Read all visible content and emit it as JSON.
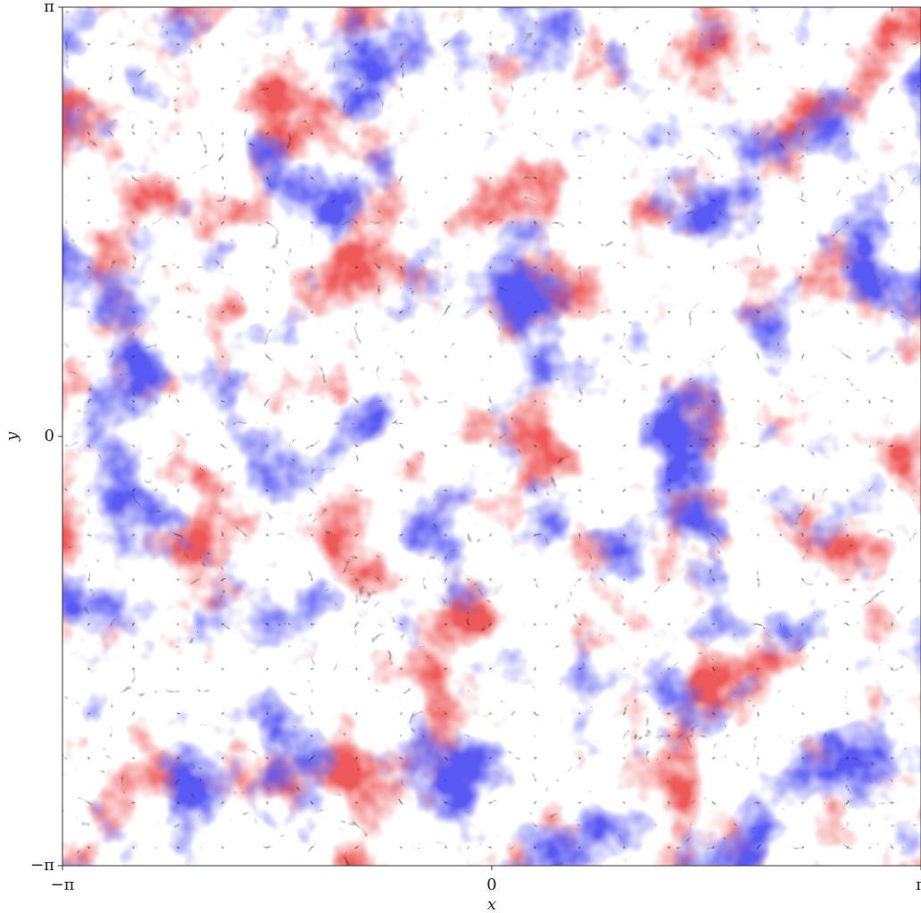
{
  "chart_data": {
    "type": "image",
    "x_label": "x",
    "y_label": "y",
    "xlim": [
      -3.141592653589793,
      3.141592653589793
    ],
    "ylim": [
      -3.141592653589793,
      3.141592653589793
    ],
    "xticks": [
      {
        "value": -3.141592653589793,
        "label": "−π"
      },
      0,
      {
        "value": 3.141592653589793,
        "label": "π"
      }
    ],
    "yticks": [
      {
        "value": -3.141592653589793,
        "label": "−π"
      },
      0,
      {
        "value": 3.141592653589793,
        "label": "π"
      }
    ]
  }
}
